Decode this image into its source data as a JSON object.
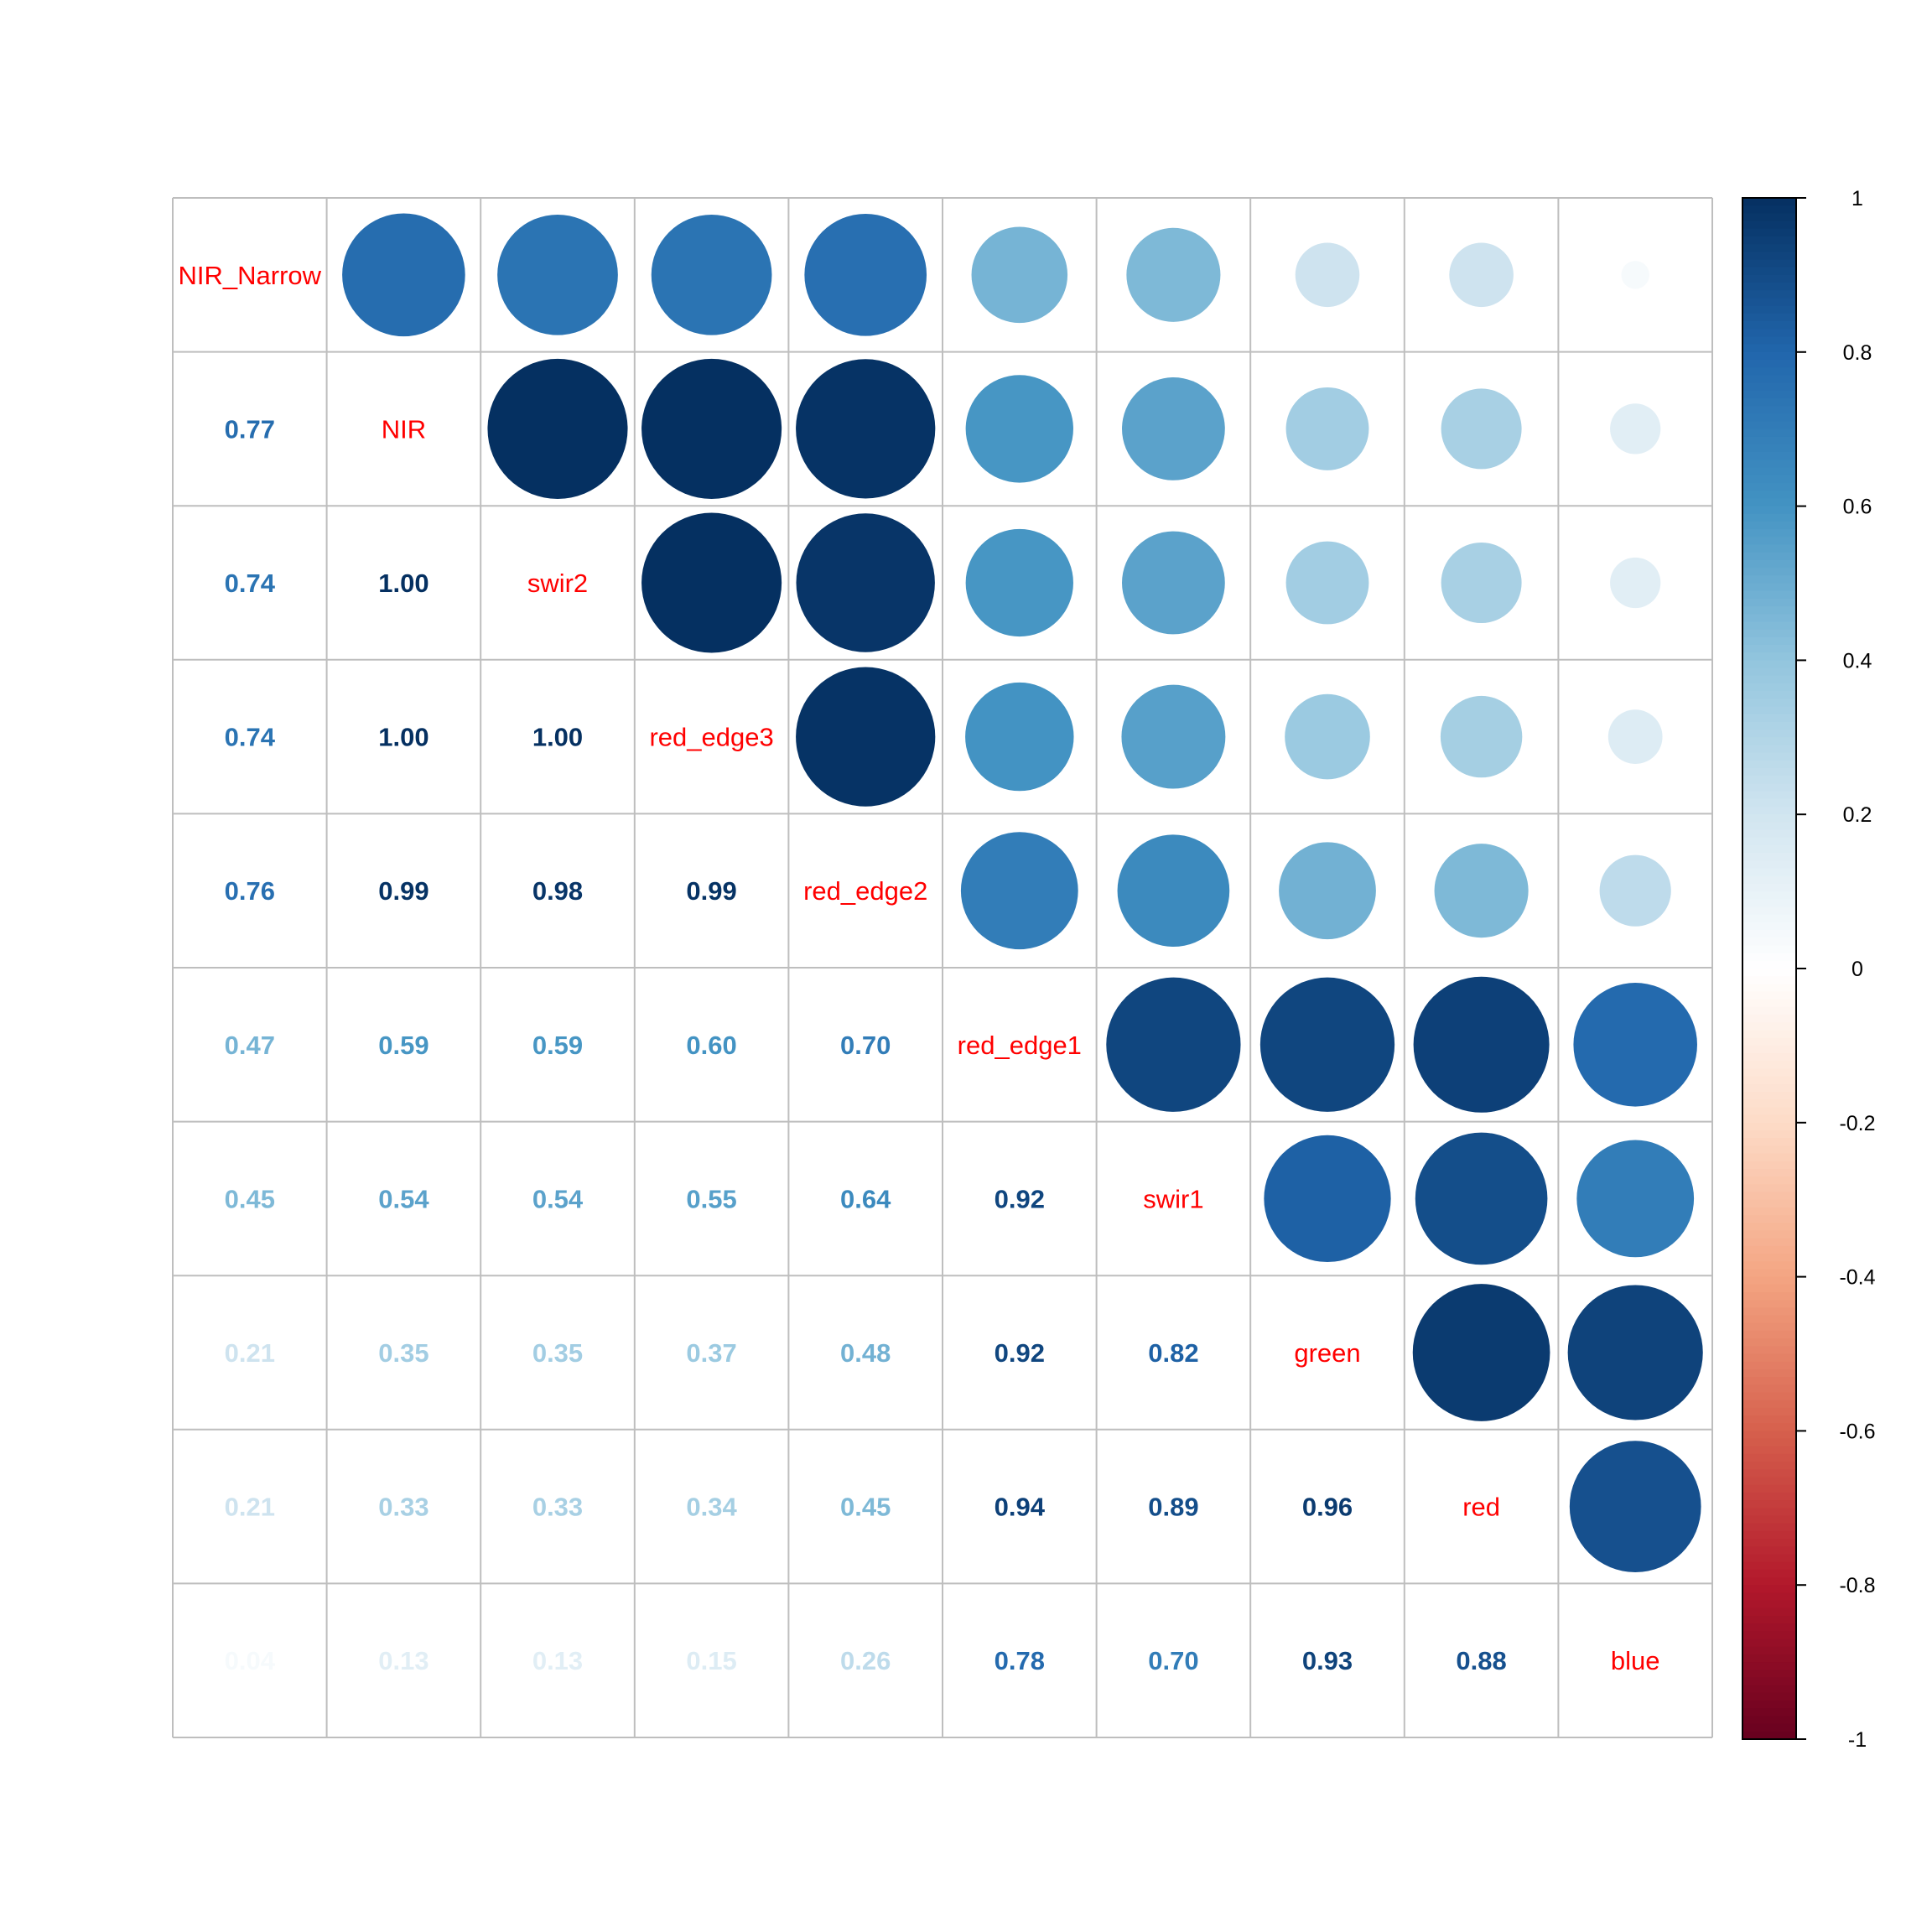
{
  "chart_data": {
    "type": "heatmap",
    "subtype": "correlation-matrix",
    "upper_triangle": "circle",
    "lower_triangle": "number",
    "diagonal": "variable-name",
    "variables": [
      "NIR_Narrow",
      "NIR",
      "swir2",
      "red_edge3",
      "red_edge2",
      "red_edge1",
      "swir1",
      "green",
      "red",
      "blue"
    ],
    "matrix": [
      [
        1.0,
        0.77,
        0.74,
        0.74,
        0.76,
        0.47,
        0.45,
        0.21,
        0.21,
        0.04
      ],
      [
        0.77,
        1.0,
        1.0,
        1.0,
        0.99,
        0.59,
        0.54,
        0.35,
        0.33,
        0.13
      ],
      [
        0.74,
        1.0,
        1.0,
        1.0,
        0.98,
        0.59,
        0.54,
        0.35,
        0.33,
        0.13
      ],
      [
        0.74,
        1.0,
        1.0,
        1.0,
        0.99,
        0.6,
        0.55,
        0.37,
        0.34,
        0.15
      ],
      [
        0.76,
        0.99,
        0.98,
        0.99,
        1.0,
        0.7,
        0.64,
        0.48,
        0.45,
        0.26
      ],
      [
        0.47,
        0.59,
        0.59,
        0.6,
        0.7,
        1.0,
        0.92,
        0.92,
        0.94,
        0.78
      ],
      [
        0.45,
        0.54,
        0.54,
        0.55,
        0.64,
        0.92,
        1.0,
        0.82,
        0.89,
        0.7
      ],
      [
        0.21,
        0.35,
        0.35,
        0.37,
        0.48,
        0.92,
        0.82,
        1.0,
        0.96,
        0.93
      ],
      [
        0.21,
        0.33,
        0.33,
        0.34,
        0.45,
        0.94,
        0.89,
        0.96,
        1.0,
        0.88
      ],
      [
        0.04,
        0.13,
        0.13,
        0.15,
        0.26,
        0.78,
        0.7,
        0.93,
        0.88,
        1.0
      ]
    ],
    "colorbar": {
      "range": [
        -1,
        1
      ],
      "ticks": [
        "1",
        "0.8",
        "0.6",
        "0.4",
        "0.2",
        "0",
        "-0.2",
        "-0.4",
        "-0.6",
        "-0.8",
        "-1"
      ],
      "placement": "right"
    },
    "palette": [
      "#67001F",
      "#B2182B",
      "#D6604D",
      "#F4A582",
      "#FDDBC7",
      "#FFFFFF",
      "#D1E5F0",
      "#92C5DE",
      "#4393C3",
      "#2166AC",
      "#053061"
    ],
    "label_color": "#FF0000",
    "grid_color": "#BEBEBE"
  }
}
